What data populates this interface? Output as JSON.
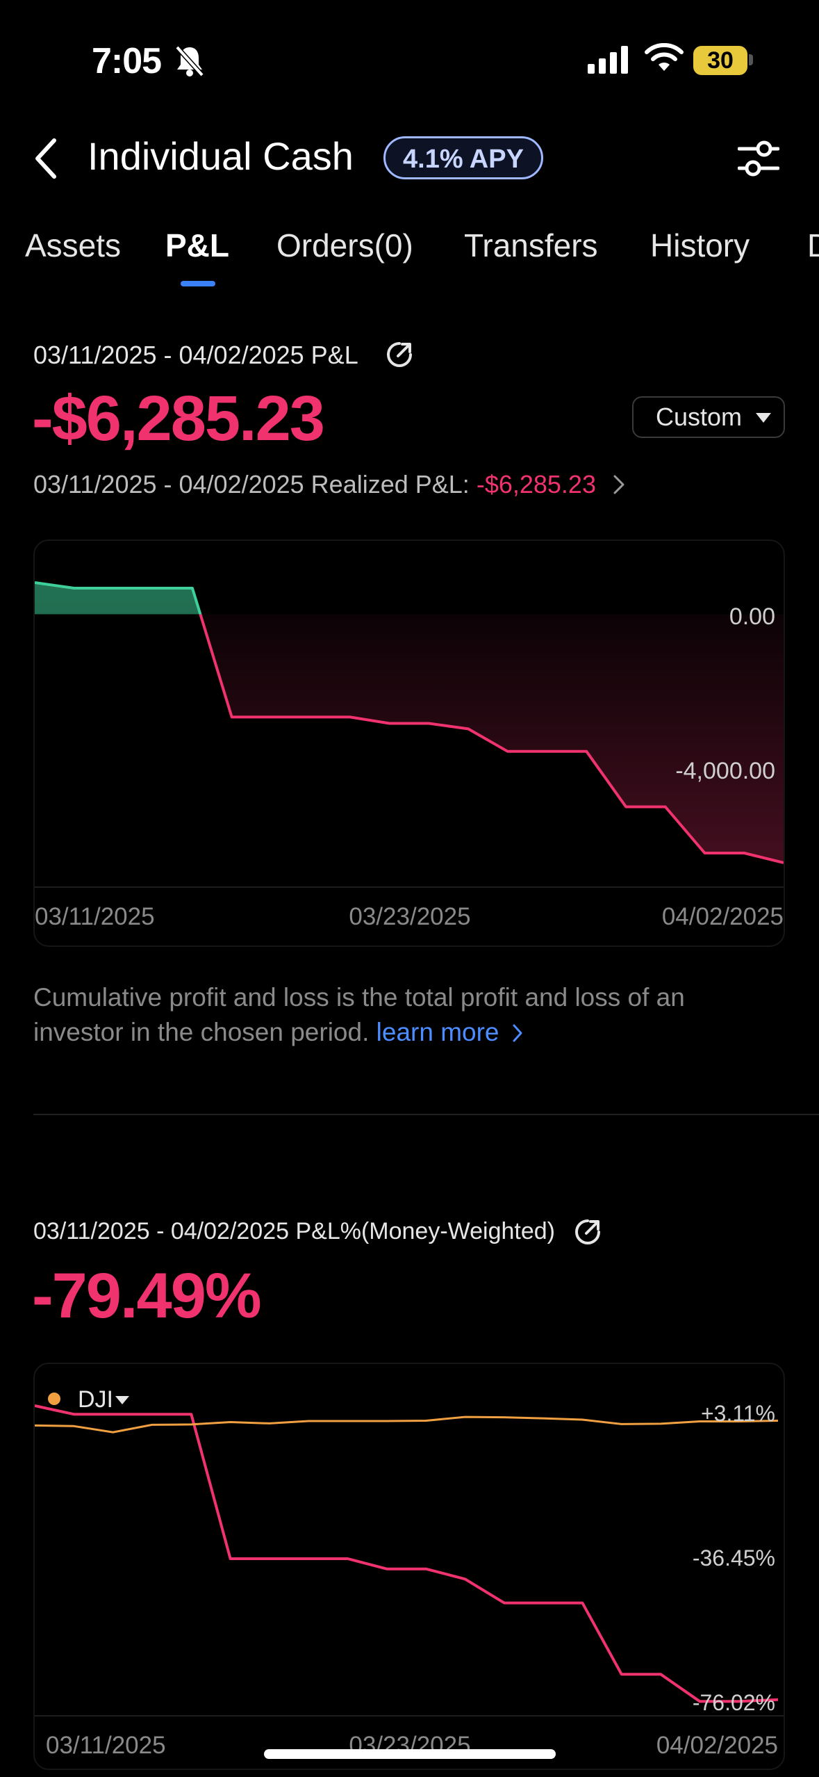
{
  "status_bar": {
    "time": "7:05",
    "battery": "30"
  },
  "header": {
    "title": "Individual Cash",
    "apy_badge": "4.1% APY"
  },
  "tabs": [
    {
      "label": "Assets"
    },
    {
      "label": "P&L",
      "active": true
    },
    {
      "label": "Orders(0)"
    },
    {
      "label": "Transfers"
    },
    {
      "label": "History"
    },
    {
      "label": "D"
    }
  ],
  "pnl": {
    "period_label": "03/11/2025 - 04/02/2025 P&L",
    "value": "-$6,285.23",
    "range_button": "Custom",
    "realized_label": "03/11/2025 - 04/02/2025 Realized P&L:",
    "realized_value": "-$6,285.23"
  },
  "description": {
    "text": "Cumulative profit and loss is the total profit and loss of an investor in the chosen period.",
    "link": "learn more"
  },
  "pnl_pct": {
    "period_label": "03/11/2025 - 04/02/2025 P&L%(Money-Weighted)",
    "value": "-79.49%",
    "benchmark": "DJI"
  },
  "colors": {
    "negative": "#f0336f",
    "positive": "#3fcf9a",
    "benchmark": "#f0a040",
    "accent": "#3b82f6"
  },
  "chart_data": [
    {
      "type": "area",
      "x_labels": [
        "03/11/2025",
        "03/23/2025",
        "04/02/2025"
      ],
      "y_tick_labels": [
        "0.00",
        "-4,000.00"
      ],
      "y_ticks": [
        0,
        -4000
      ],
      "ylim": [
        -6550,
        800
      ],
      "x": [
        0,
        1,
        2,
        3,
        4,
        5,
        6,
        7,
        8,
        9,
        10,
        11,
        12,
        13,
        14,
        15,
        16,
        17,
        18,
        19
      ],
      "series": [
        {
          "values": [
            800,
            660,
            660,
            660,
            660,
            -2600,
            -2600,
            -2600,
            -2600,
            -2760,
            -2760,
            -2900,
            -3470,
            -3470,
            -3470,
            -4870,
            -4870,
            -6040,
            -6040,
            -6285.23
          ]
        }
      ]
    },
    {
      "type": "line",
      "x_labels": [
        "03/11/2025",
        "03/23/2025",
        "04/02/2025"
      ],
      "y_tick_labels": [
        "+3.11%",
        "-36.45%",
        "-76.02%"
      ],
      "y_ticks": [
        3.11,
        -36.45,
        -76.02
      ],
      "ylim": [
        -83,
        7
      ],
      "legend": "top-left",
      "series": [
        {
          "values": [
            7,
            4.5,
            4.5,
            4.5,
            4.5,
            -38,
            -38,
            -38,
            -38,
            -41,
            -41,
            -44,
            -51,
            -51,
            -51,
            -72,
            -72,
            -80,
            -80,
            -79.49
          ]
        },
        {
          "name": "DJI",
          "values": [
            1.2,
            1.0,
            -0.8,
            1.4,
            1.5,
            2.2,
            1.8,
            2.5,
            2.5,
            2.5,
            2.6,
            3.7,
            3.6,
            3.3,
            2.9,
            1.6,
            1.7,
            2.4,
            2.4,
            2.6
          ]
        }
      ]
    }
  ]
}
